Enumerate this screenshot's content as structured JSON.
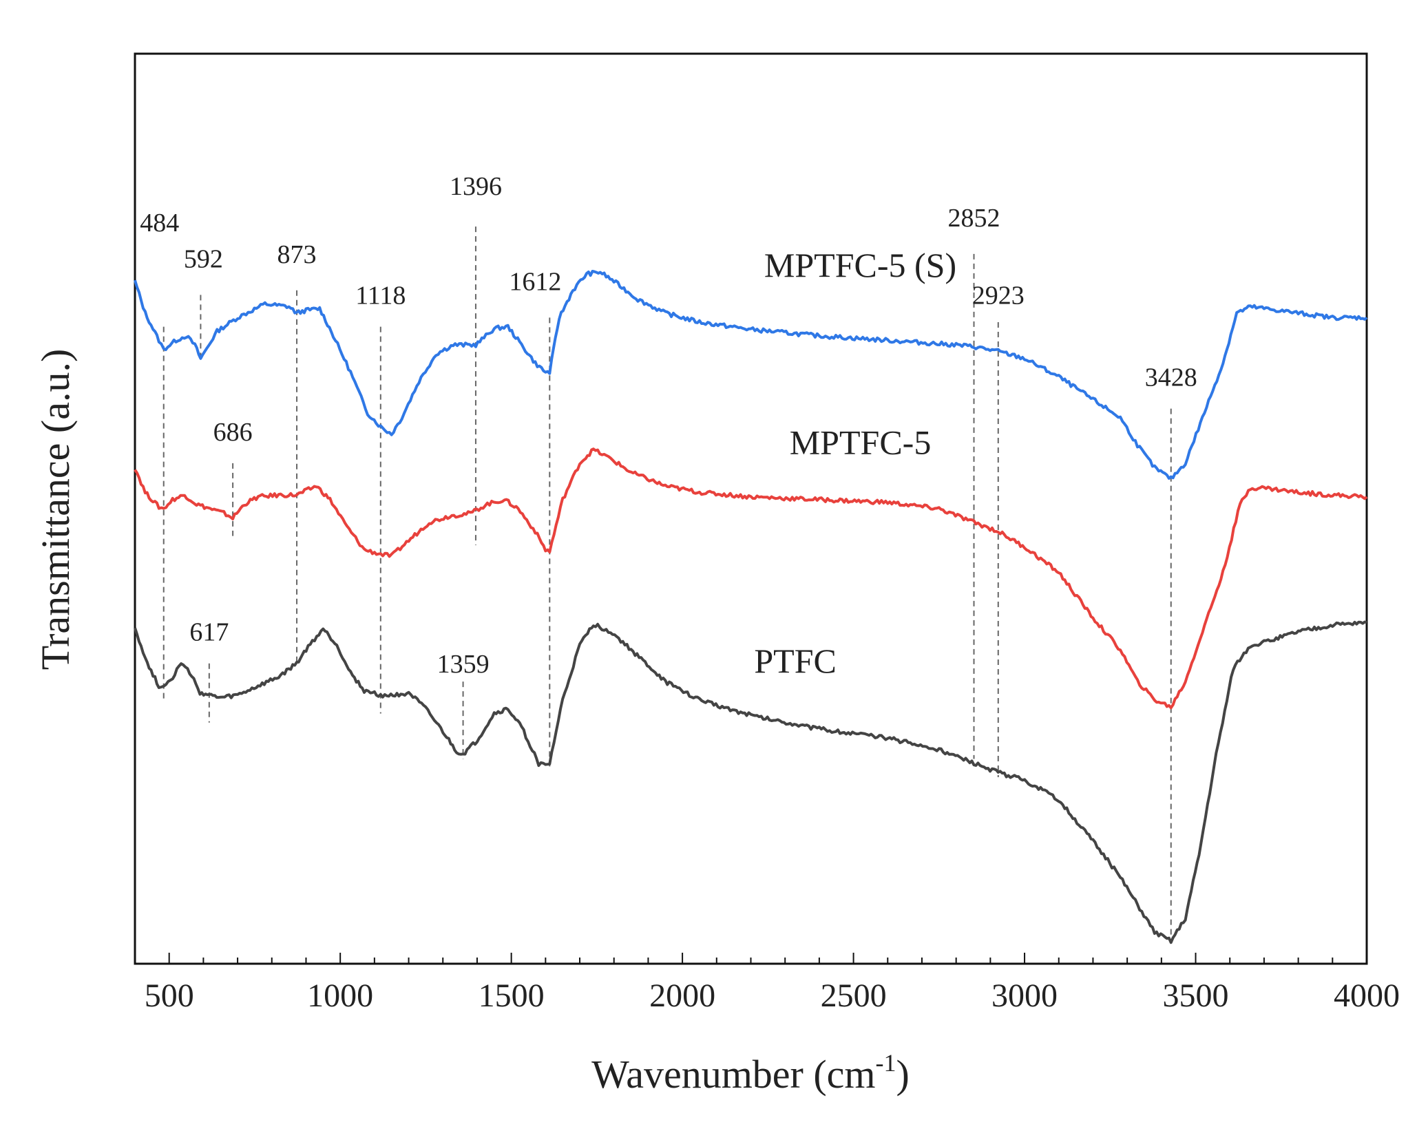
{
  "chart_data": {
    "type": "line",
    "title": "",
    "xlabel": "Wavenumber (cm",
    "xlabel_sup": "-1",
    "xlabel_close": ")",
    "ylabel": "Transmittance (a.u.)",
    "xlim": [
      400,
      4000
    ],
    "ylim": [
      0,
      100
    ],
    "xticks": [
      500,
      1000,
      1500,
      2000,
      2500,
      3000,
      3500,
      4000
    ],
    "series": [
      {
        "name": "MPTFC-5 (S)",
        "color": "#2f78e6",
        "points": [
          [
            400,
            75
          ],
          [
            430,
            71.5
          ],
          [
            470,
            68.5
          ],
          [
            484,
            67.5
          ],
          [
            520,
            68.5
          ],
          [
            550,
            69
          ],
          [
            575,
            68
          ],
          [
            592,
            66.5
          ],
          [
            640,
            69.5
          ],
          [
            700,
            71
          ],
          [
            780,
            72.5
          ],
          [
            850,
            72.2
          ],
          [
            873,
            71.5
          ],
          [
            900,
            71.8
          ],
          [
            940,
            72
          ],
          [
            980,
            69
          ],
          [
            1030,
            65
          ],
          [
            1080,
            60.5
          ],
          [
            1118,
            59
          ],
          [
            1150,
            58.2
          ],
          [
            1180,
            60
          ],
          [
            1230,
            64
          ],
          [
            1280,
            67
          ],
          [
            1330,
            68
          ],
          [
            1396,
            68
          ],
          [
            1450,
            69.8
          ],
          [
            1490,
            70
          ],
          [
            1530,
            68
          ],
          [
            1570,
            66
          ],
          [
            1600,
            65
          ],
          [
            1612,
            65
          ],
          [
            1640,
            71
          ],
          [
            1680,
            74
          ],
          [
            1720,
            75.8
          ],
          [
            1760,
            76
          ],
          [
            1800,
            75
          ],
          [
            1870,
            73
          ],
          [
            1950,
            71.5
          ],
          [
            2050,
            70.5
          ],
          [
            2200,
            69.7
          ],
          [
            2400,
            69
          ],
          [
            2600,
            68.5
          ],
          [
            2800,
            68
          ],
          [
            2852,
            67.8
          ],
          [
            2923,
            67.3
          ],
          [
            3000,
            66.5
          ],
          [
            3100,
            64.5
          ],
          [
            3200,
            62
          ],
          [
            3280,
            60
          ],
          [
            3330,
            57
          ],
          [
            3380,
            54.5
          ],
          [
            3428,
            53.3
          ],
          [
            3470,
            55
          ],
          [
            3520,
            60
          ],
          [
            3580,
            66
          ],
          [
            3620,
            71.5
          ],
          [
            3660,
            72.2
          ],
          [
            3700,
            72
          ],
          [
            3800,
            71.5
          ],
          [
            3900,
            71
          ],
          [
            4000,
            71
          ]
        ]
      },
      {
        "name": "MPTFC-5",
        "color": "#e8413c",
        "points": [
          [
            400,
            54.5
          ],
          [
            430,
            51.8
          ],
          [
            470,
            50.2
          ],
          [
            484,
            50
          ],
          [
            510,
            51
          ],
          [
            545,
            51.5
          ],
          [
            580,
            50.5
          ],
          [
            620,
            50
          ],
          [
            660,
            49.5
          ],
          [
            686,
            49
          ],
          [
            720,
            50.5
          ],
          [
            760,
            51.3
          ],
          [
            820,
            51.5
          ],
          [
            873,
            51.5
          ],
          [
            930,
            52.5
          ],
          [
            970,
            51
          ],
          [
            1020,
            48
          ],
          [
            1070,
            45.5
          ],
          [
            1118,
            45
          ],
          [
            1150,
            44.8
          ],
          [
            1200,
            46.5
          ],
          [
            1260,
            48.5
          ],
          [
            1320,
            49.2
          ],
          [
            1380,
            49.5
          ],
          [
            1430,
            50.5
          ],
          [
            1480,
            51
          ],
          [
            1520,
            50
          ],
          [
            1570,
            47.5
          ],
          [
            1600,
            45.5
          ],
          [
            1612,
            45.3
          ],
          [
            1650,
            51
          ],
          [
            1700,
            55
          ],
          [
            1740,
            56.5
          ],
          [
            1790,
            55.5
          ],
          [
            1850,
            54
          ],
          [
            1950,
            52.5
          ],
          [
            2050,
            51.8
          ],
          [
            2200,
            51.3
          ],
          [
            2400,
            51
          ],
          [
            2600,
            50.7
          ],
          [
            2750,
            50
          ],
          [
            2852,
            48.5
          ],
          [
            2923,
            47.5
          ],
          [
            3000,
            45.8
          ],
          [
            3100,
            43
          ],
          [
            3200,
            38
          ],
          [
            3280,
            34.5
          ],
          [
            3330,
            31
          ],
          [
            3380,
            29
          ],
          [
            3428,
            28.2
          ],
          [
            3470,
            31
          ],
          [
            3520,
            36.5
          ],
          [
            3580,
            43
          ],
          [
            3630,
            50.5
          ],
          [
            3660,
            52.3
          ],
          [
            3700,
            52.3
          ],
          [
            3800,
            51.8
          ],
          [
            3900,
            51.5
          ],
          [
            4000,
            51.3
          ]
        ]
      },
      {
        "name": "PTFC",
        "color": "#444444",
        "points": [
          [
            400,
            37
          ],
          [
            430,
            33.5
          ],
          [
            470,
            30.5
          ],
          [
            484,
            30.5
          ],
          [
            510,
            31.5
          ],
          [
            535,
            33
          ],
          [
            560,
            32
          ],
          [
            590,
            29.8
          ],
          [
            617,
            29.5
          ],
          [
            650,
            29.2
          ],
          [
            700,
            29.5
          ],
          [
            760,
            30.5
          ],
          [
            820,
            31.5
          ],
          [
            873,
            33
          ],
          [
            900,
            34.5
          ],
          [
            950,
            36.8
          ],
          [
            990,
            35
          ],
          [
            1030,
            32
          ],
          [
            1070,
            30
          ],
          [
            1118,
            29.5
          ],
          [
            1160,
            29.5
          ],
          [
            1200,
            29.8
          ],
          [
            1250,
            28
          ],
          [
            1300,
            25.5
          ],
          [
            1340,
            23.3
          ],
          [
            1359,
            23
          ],
          [
            1400,
            24.5
          ],
          [
            1450,
            27.5
          ],
          [
            1490,
            28
          ],
          [
            1530,
            26
          ],
          [
            1580,
            22
          ],
          [
            1600,
            21.8
          ],
          [
            1612,
            22
          ],
          [
            1650,
            29
          ],
          [
            1700,
            35
          ],
          [
            1740,
            37.3
          ],
          [
            1790,
            36.5
          ],
          [
            1850,
            34.5
          ],
          [
            1950,
            31
          ],
          [
            2050,
            29
          ],
          [
            2200,
            27.3
          ],
          [
            2400,
            25.8
          ],
          [
            2600,
            24.8
          ],
          [
            2750,
            23.5
          ],
          [
            2852,
            22
          ],
          [
            2923,
            21
          ],
          [
            3000,
            20.2
          ],
          [
            3100,
            18
          ],
          [
            3200,
            13.5
          ],
          [
            3280,
            9.5
          ],
          [
            3330,
            6.5
          ],
          [
            3380,
            3.5
          ],
          [
            3428,
            2.5
          ],
          [
            3470,
            5
          ],
          [
            3510,
            12
          ],
          [
            3560,
            23
          ],
          [
            3610,
            32.5
          ],
          [
            3660,
            35
          ],
          [
            3700,
            35.3
          ],
          [
            3800,
            36.5
          ],
          [
            3900,
            37.2
          ],
          [
            4000,
            37.5
          ]
        ]
      }
    ],
    "series_labels": [
      {
        "text": "MPTFC-5 (S)",
        "x": 2520,
        "y": 75.5
      },
      {
        "text": "MPTFC-5",
        "x": 2520,
        "y": 56
      },
      {
        "text": "PTFC",
        "x": 2330,
        "y": 32
      }
    ],
    "peak_markers": [
      {
        "label": "484",
        "x": 484,
        "y_top": 70,
        "y_bottom": 29,
        "label_x": 472,
        "label_y": 80.5
      },
      {
        "label": "592",
        "x": 592,
        "y_top": 73.5,
        "y_bottom": 66.5,
        "label_x": 600,
        "label_y": 76.5
      },
      {
        "label": "873",
        "x": 873,
        "y_top": 74,
        "y_bottom": 33,
        "label_x": 873,
        "label_y": 77
      },
      {
        "label": "1118",
        "x": 1118,
        "y_top": 70,
        "y_bottom": 27.5,
        "label_x": 1118,
        "label_y": 72.5
      },
      {
        "label": "1396",
        "x": 1396,
        "y_top": 81,
        "y_bottom": 46,
        "label_x": 1396,
        "label_y": 84.5
      },
      {
        "label": "1612",
        "x": 1612,
        "y_top": 71,
        "y_bottom": 21.5,
        "label_x": 1570,
        "label_y": 74
      },
      {
        "label": "686",
        "x": 686,
        "y_top": 55,
        "y_bottom": 47,
        "label_x": 686,
        "label_y": 57.5
      },
      {
        "label": "617",
        "x": 617,
        "y_top": 33,
        "y_bottom": 26.5,
        "label_x": 617,
        "label_y": 35.5
      },
      {
        "label": "1359",
        "x": 1359,
        "y_top": 31,
        "y_bottom": 22.5,
        "label_x": 1359,
        "label_y": 32
      },
      {
        "label": "2852",
        "x": 2852,
        "y_top": 78,
        "y_bottom": 22.5,
        "label_x": 2852,
        "label_y": 81
      },
      {
        "label": "2923",
        "x": 2923,
        "y_top": 70.5,
        "y_bottom": 20.5,
        "label_x": 2923,
        "label_y": 72.5
      },
      {
        "label": "3428",
        "x": 3428,
        "y_top": 61,
        "y_bottom": 3,
        "label_x": 3428,
        "label_y": 63.5
      }
    ]
  }
}
